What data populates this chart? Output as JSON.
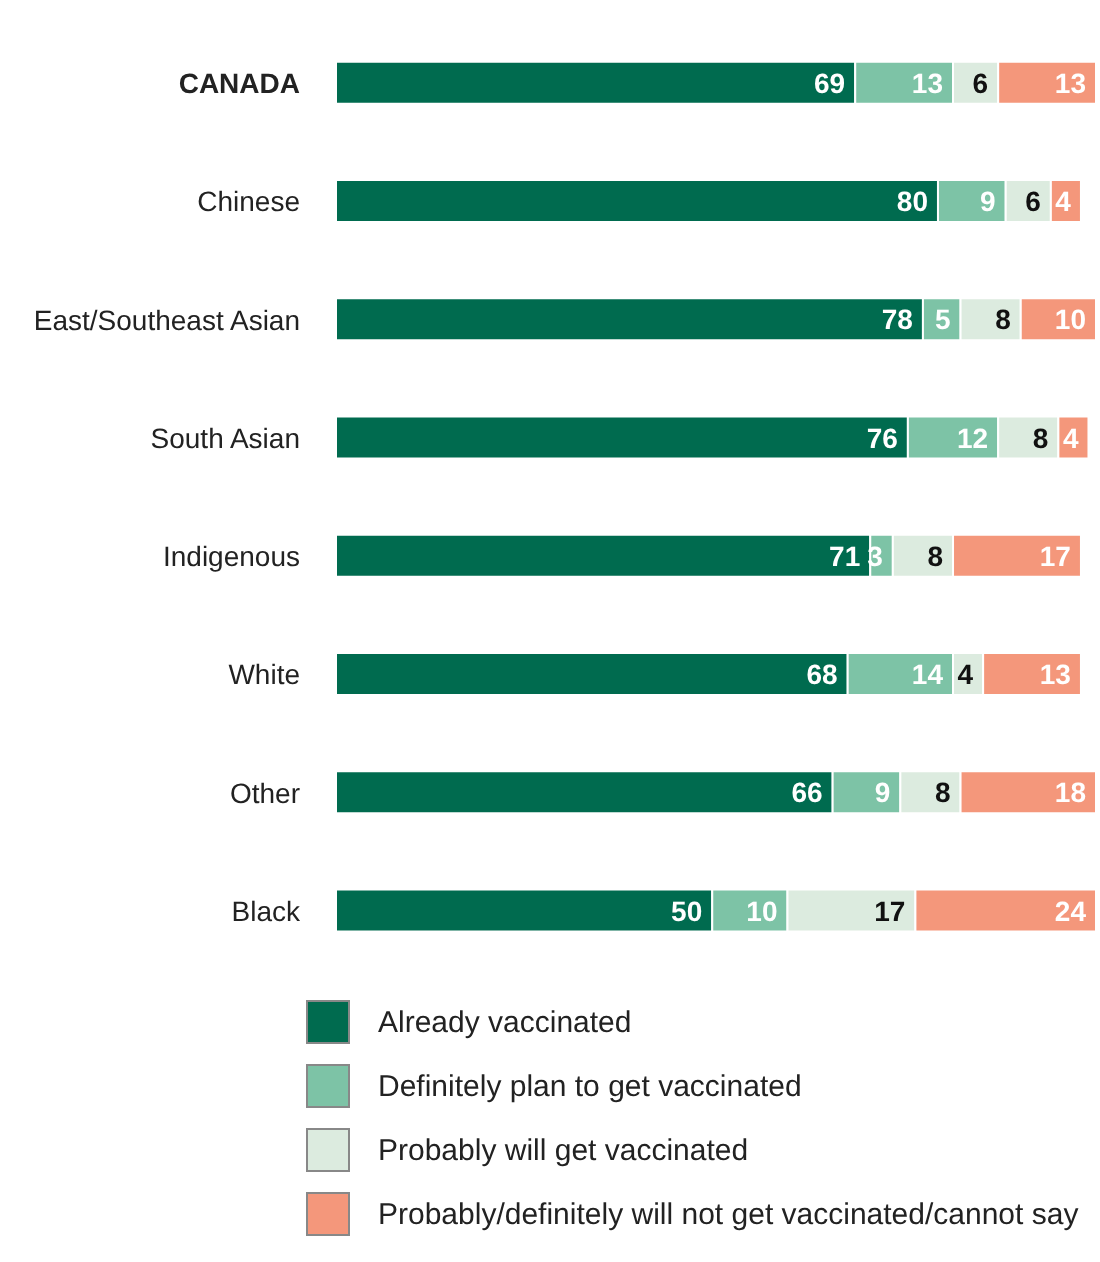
{
  "chart_data": {
    "type": "bar",
    "orientation": "horizontal",
    "stacked": true,
    "data_labels": true,
    "legend": "bottom",
    "categories": [
      "CANADA",
      "Chinese",
      "East/Southeast Asian",
      "South Asian",
      "Indigenous",
      "White",
      "Other",
      "Black"
    ],
    "series": [
      {
        "name": "Already vaccinated",
        "color": "#006b4f",
        "values": [
          69,
          80,
          78,
          76,
          71,
          68,
          66,
          50
        ]
      },
      {
        "name": "Definitely plan to get vaccinated",
        "color": "#7dc3a6",
        "values": [
          13,
          9,
          5,
          12,
          3,
          14,
          9,
          10
        ]
      },
      {
        "name": "Probably will get vaccinated",
        "color": "#dcebdf",
        "values": [
          6,
          6,
          8,
          8,
          8,
          4,
          8,
          17
        ]
      },
      {
        "name": "Probably/definitely will not get vaccinated/cannot say",
        "color": "#f4977b",
        "values": [
          13,
          4,
          10,
          4,
          17,
          13,
          18,
          24
        ]
      }
    ]
  }
}
